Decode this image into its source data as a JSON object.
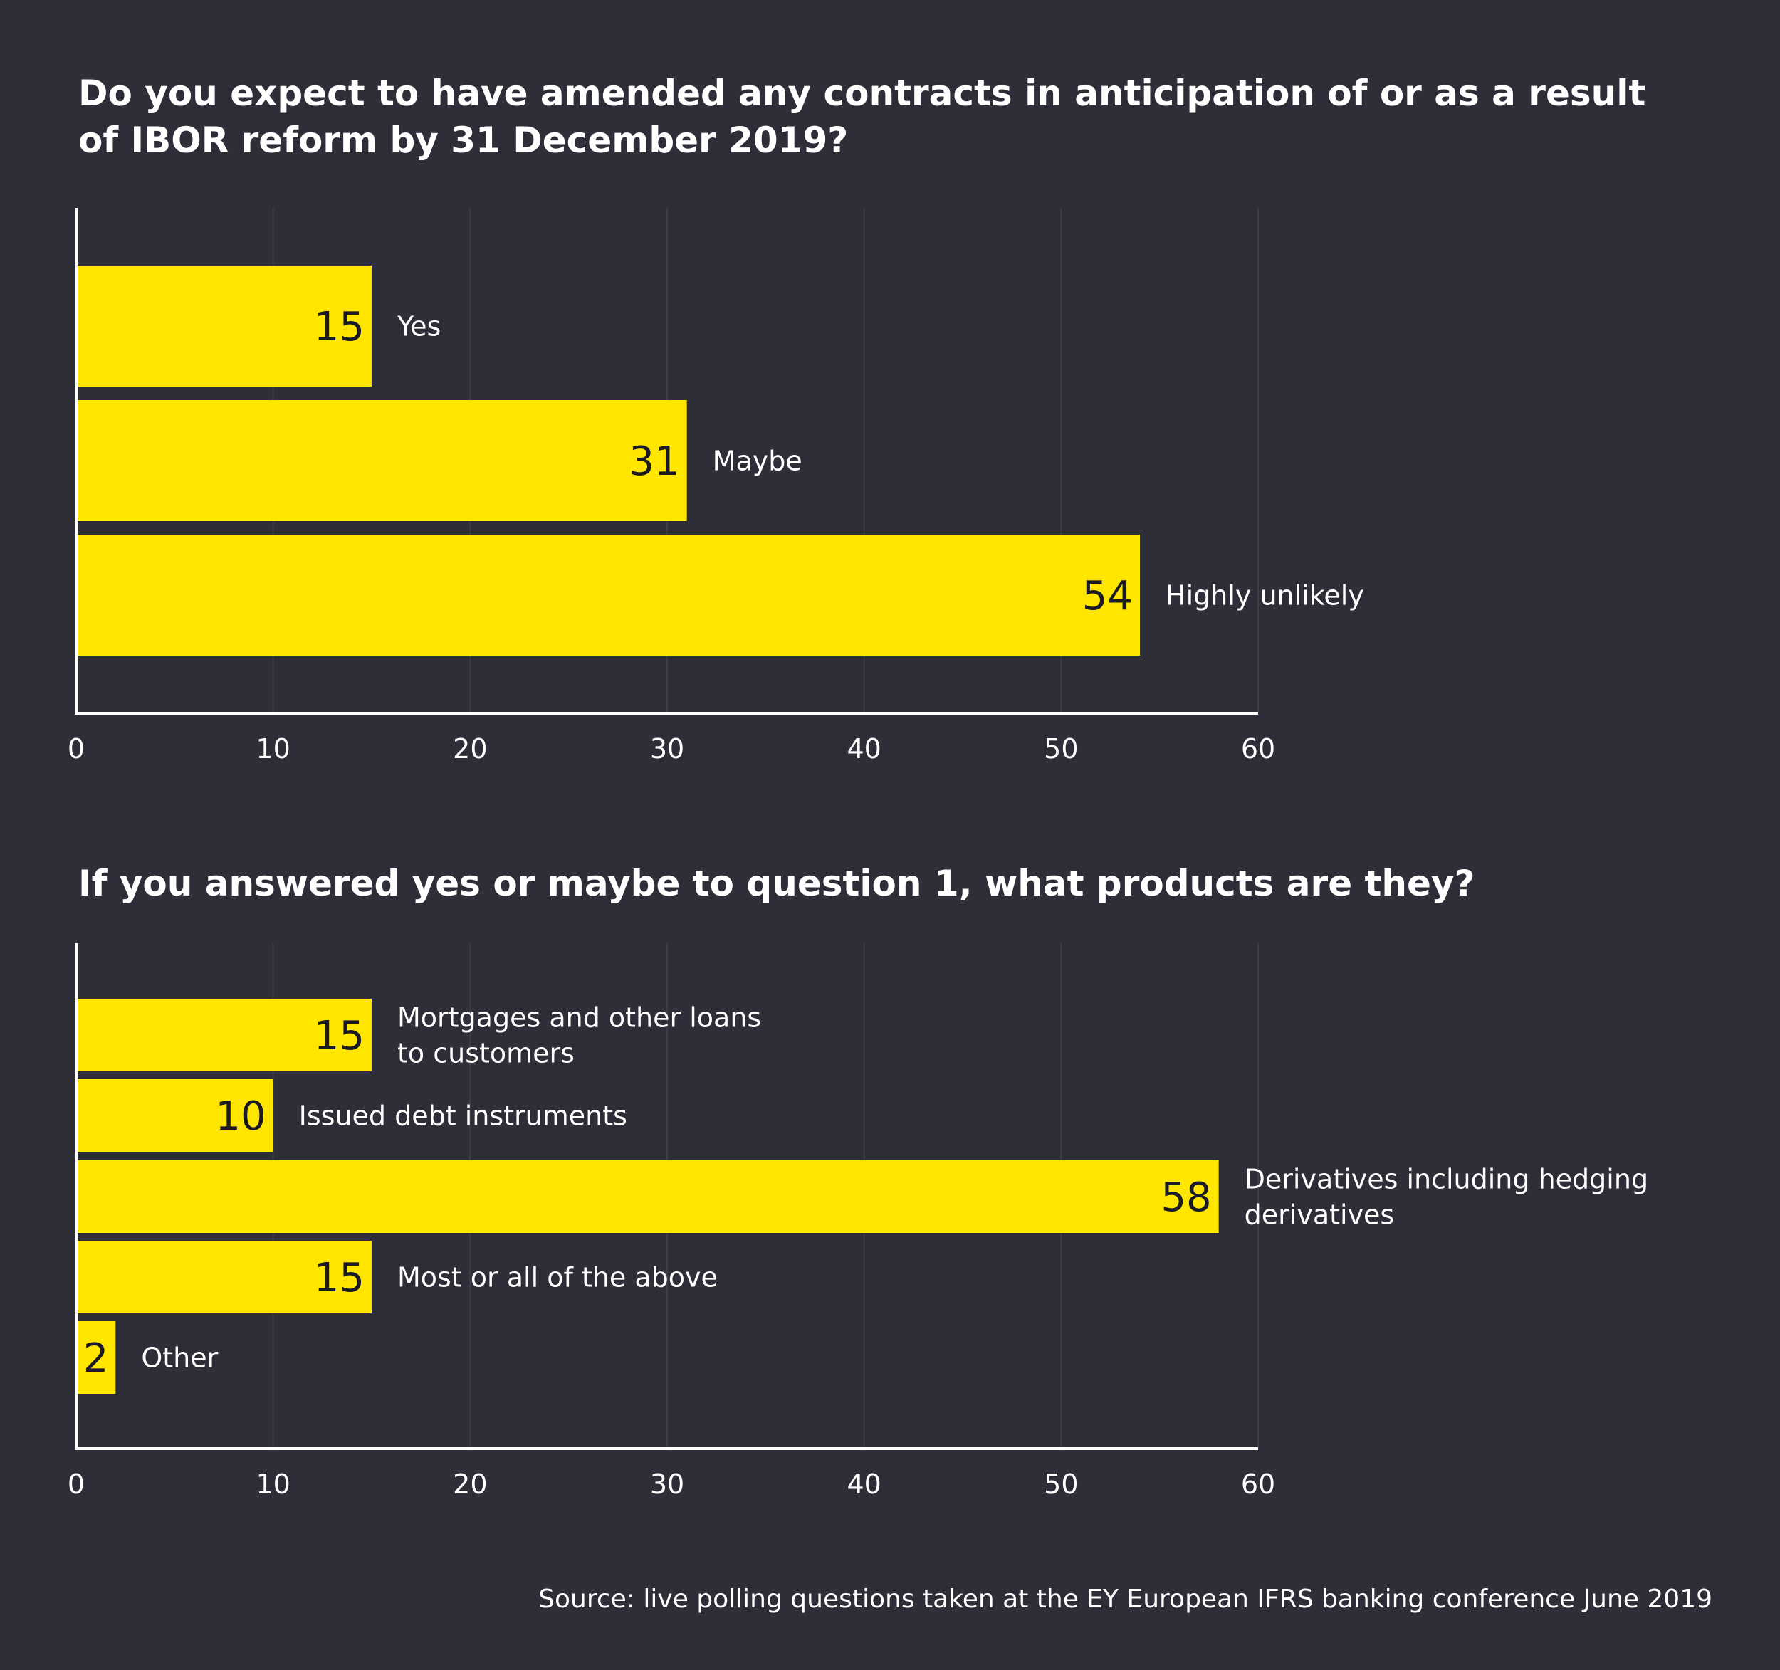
{
  "colors": {
    "background": "#2e2e38",
    "bar": "#ffe600",
    "text": "#ffffff",
    "value_text": "#1a1a24",
    "grid": "#3d3d48"
  },
  "chart_data": [
    {
      "type": "bar",
      "orientation": "horizontal",
      "title": "Do you expect to have amended any contracts in anticipation of or as a result of IBOR reform by 31 December 2019?",
      "categories": [
        [
          "Yes"
        ],
        [
          "Maybe"
        ],
        [
          "Highly unlikely"
        ]
      ],
      "values": [
        15,
        31,
        54
      ],
      "xlim": [
        0,
        60
      ],
      "xticks": [
        0,
        10,
        20,
        30,
        40,
        50,
        60
      ],
      "grid": "vertical"
    },
    {
      "type": "bar",
      "orientation": "horizontal",
      "title": "If you answered yes or maybe to question 1, what products are they?",
      "categories": [
        [
          "Mortgages and other loans",
          "to customers"
        ],
        [
          "Issued debt instruments"
        ],
        [
          "Derivatives including hedging",
          "derivatives"
        ],
        [
          "Most or all of the above"
        ],
        [
          "Other"
        ]
      ],
      "values": [
        15,
        10,
        58,
        15,
        2
      ],
      "xlim": [
        0,
        60
      ],
      "xticks": [
        0,
        10,
        20,
        30,
        40,
        50,
        60
      ],
      "grid": "vertical"
    }
  ],
  "source": "Source: live polling questions taken at the EY European IFRS banking conference June 2019"
}
